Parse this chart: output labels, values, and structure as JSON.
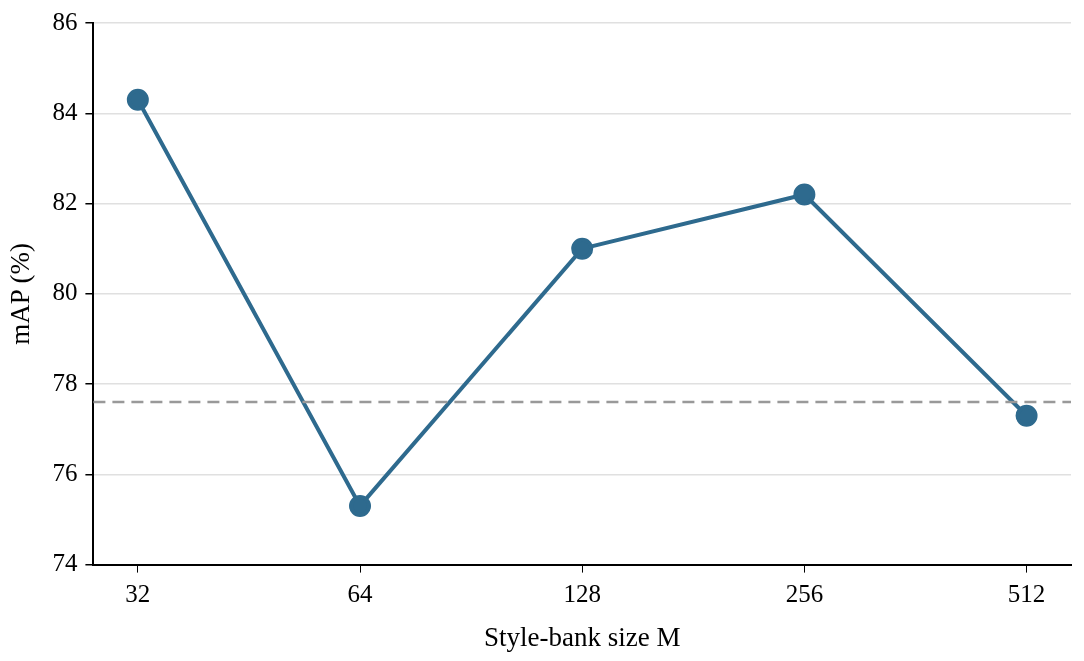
{
  "chart_data": {
    "type": "line",
    "xlabel": "Style-bank size M",
    "ylabel": "mAP (%)",
    "categories": [
      "32",
      "64",
      "128",
      "256",
      "512"
    ],
    "series": [
      {
        "color": "#2e6a8e",
        "values": [
          84.3,
          75.3,
          81.0,
          82.2,
          77.3
        ]
      }
    ],
    "ylim": [
      74,
      86
    ],
    "yticks": [
      74,
      76,
      78,
      80,
      82,
      84,
      86
    ],
    "ref_lines": [
      {
        "axis": "y",
        "value": 77.6,
        "color": "#999999",
        "line_style": "dashed"
      }
    ],
    "grid": "y",
    "legend": false,
    "marker": "circle",
    "line_style": "solid"
  }
}
